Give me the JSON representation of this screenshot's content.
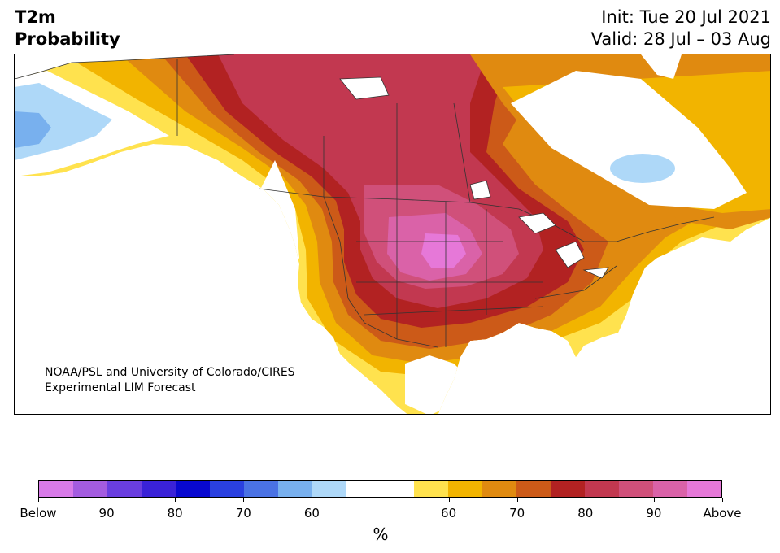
{
  "header": {
    "title_line1": "T2m",
    "title_line2": "Probability",
    "init_text": "Init: Tue 20 Jul 2021",
    "valid_text": "Valid: 28 Jul – 03 Aug"
  },
  "credit": {
    "line1": "NOAA/PSL and University of Colorado/CIRES",
    "line2": "Experimental LIM Forecast"
  },
  "colorbar": {
    "colors": [
      "#d87ae8",
      "#a45ce0",
      "#6a3ee0",
      "#3a22d8",
      "#0808d0",
      "#2a40e0",
      "#4a72e4",
      "#78b0ee",
      "#aed8f8",
      "#ffffff",
      "#ffffff",
      "#ffe24e",
      "#f2b400",
      "#e08a10",
      "#cc5a18",
      "#b22222",
      "#c23850",
      "#d0507a",
      "#da62a8",
      "#e678d8"
    ],
    "tick_labels": [
      "Below",
      "90",
      "80",
      "70",
      "60",
      "",
      "60",
      "70",
      "80",
      "90",
      "Above"
    ],
    "unit": "%"
  }
}
